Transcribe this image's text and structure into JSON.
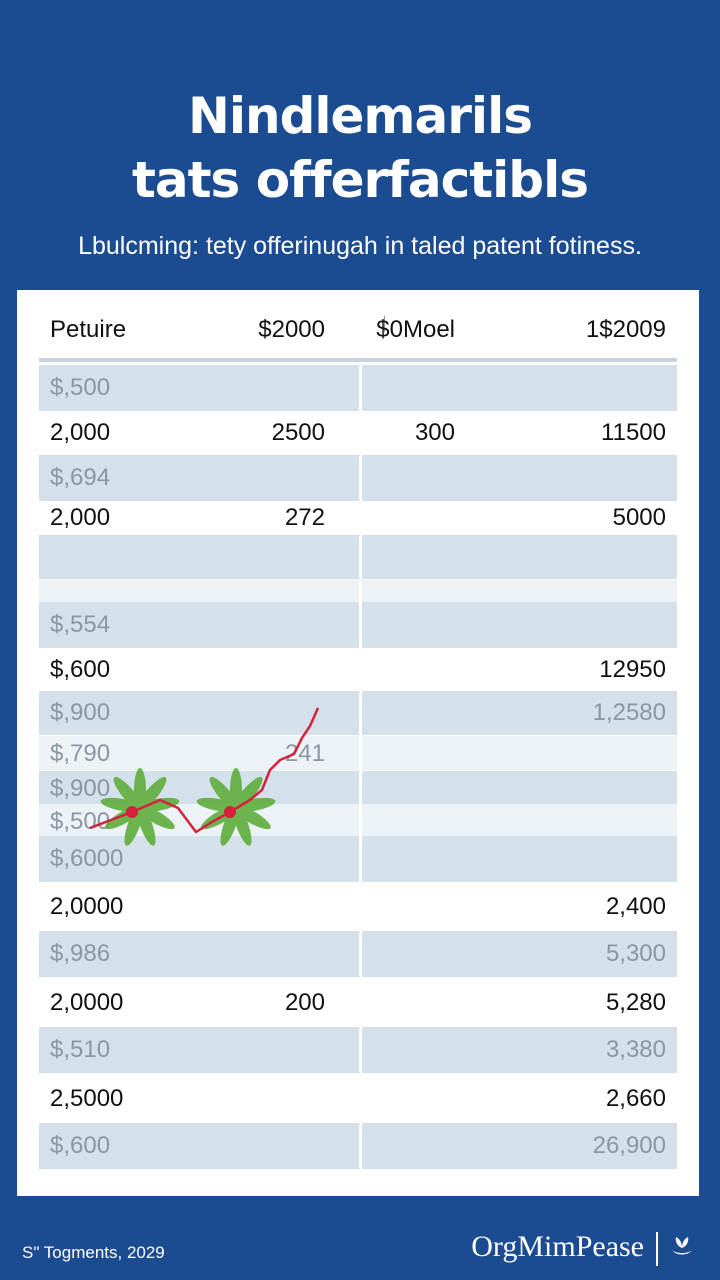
{
  "title": {
    "line1": "Nindlemarils",
    "line2": "tats offerfactibls"
  },
  "subtitle": "Lbulcming: tety offerinugah in taled patent fotiness.",
  "chart_data": {
    "type": "table",
    "columns": [
      "Petuire",
      "$2000",
      "$0Moel",
      "1$2009"
    ],
    "rows": [
      {
        "style": "shaded",
        "cells": [
          "$,500",
          "",
          "",
          ""
        ]
      },
      {
        "style": "plain",
        "cells": [
          "2,000",
          "2500",
          "300",
          "11500"
        ]
      },
      {
        "style": "shaded",
        "cells": [
          "$,694",
          "",
          "",
          ""
        ]
      },
      {
        "style": "plain",
        "cells": [
          "2,000",
          "272",
          "",
          "5000"
        ]
      },
      {
        "style": "shaded",
        "cells": [
          "",
          "",
          "",
          ""
        ]
      },
      {
        "style": "light",
        "cells": [
          "",
          "",
          "",
          ""
        ]
      },
      {
        "style": "shaded",
        "cells": [
          "$,554",
          "",
          "",
          ""
        ]
      },
      {
        "style": "plain",
        "cells": [
          "$,600",
          "",
          "",
          "12950"
        ]
      },
      {
        "style": "shaded",
        "cells": [
          "$,900",
          "",
          "",
          "1,2580"
        ]
      },
      {
        "style": "light",
        "cells": [
          "$,790",
          "241",
          "",
          ""
        ]
      },
      {
        "style": "shaded",
        "cells": [
          "$,900",
          "",
          "",
          ""
        ]
      },
      {
        "style": "light",
        "cells": [
          "$,500",
          "",
          "",
          ""
        ]
      },
      {
        "style": "shaded",
        "cells": [
          "$,6000",
          "",
          "",
          ""
        ]
      },
      {
        "style": "plain",
        "cells": [
          "2,0000",
          "",
          "",
          "2,400"
        ]
      },
      {
        "style": "shaded",
        "cells": [
          "$,986",
          "",
          "",
          "5,300"
        ]
      },
      {
        "style": "plain",
        "cells": [
          "2,0000",
          "200",
          "",
          "5,280"
        ]
      },
      {
        "style": "shaded",
        "cells": [
          "$,510",
          "",
          "",
          "3,380"
        ]
      },
      {
        "style": "plain",
        "cells": [
          "2,5000",
          "",
          "",
          "2,660"
        ]
      },
      {
        "style": "shaded",
        "cells": [
          "$,600",
          "",
          "",
          "26,900"
        ]
      }
    ],
    "accent_colors": {
      "background": "#1b4b91",
      "row_shade": "#d5e1ea",
      "trend_line": "#d4213d",
      "leaf": "#5fae3c"
    }
  },
  "footer": {
    "left": "S\" Togments, 2029",
    "brand": "OrgMimPease",
    "icon": "leaf-hand-icon"
  }
}
